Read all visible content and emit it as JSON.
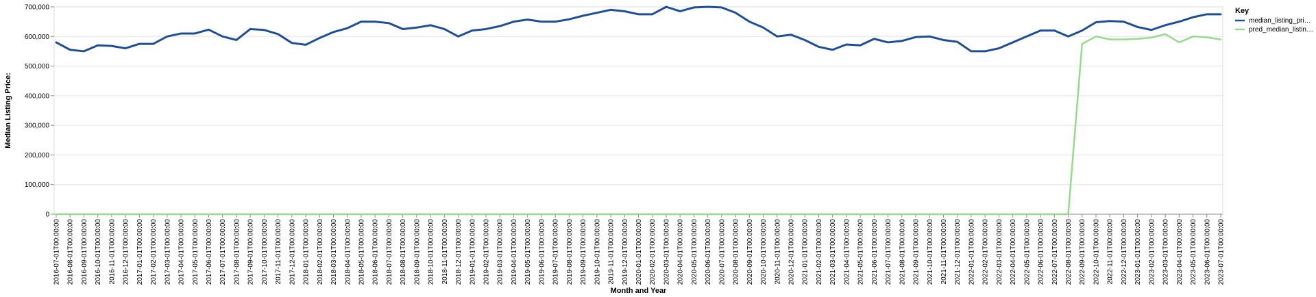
{
  "chart_data": {
    "type": "line",
    "xlabel": "Month and Year",
    "ylabel": "Median Listing Price:",
    "ylim": [
      0,
      700000
    ],
    "y_ticks": [
      "0",
      "100,000",
      "200,000",
      "300,000",
      "400,000",
      "500,000",
      "600,000",
      "700,000"
    ],
    "grid": true,
    "legend": {
      "title": "Key",
      "position": "right",
      "labels": [
        "median_listing_pri…",
        "pred_median_listin…"
      ]
    },
    "categories": [
      "2016-07-01T00:00:00",
      "2016-08-01T00:00:00",
      "2016-09-01T00:00:00",
      "2016-10-01T00:00:00",
      "2016-11-01T00:00:00",
      "2016-12-01T00:00:00",
      "2017-01-01T00:00:00",
      "2017-02-01T00:00:00",
      "2017-03-01T00:00:00",
      "2017-04-01T00:00:00",
      "2017-05-01T00:00:00",
      "2017-06-01T00:00:00",
      "2017-07-01T00:00:00",
      "2017-08-01T00:00:00",
      "2017-09-01T00:00:00",
      "2017-10-01T00:00:00",
      "2017-11-01T00:00:00",
      "2017-12-01T00:00:00",
      "2018-01-01T00:00:00",
      "2018-02-01T00:00:00",
      "2018-03-01T00:00:00",
      "2018-04-01T00:00:00",
      "2018-05-01T00:00:00",
      "2018-06-01T00:00:00",
      "2018-07-01T00:00:00",
      "2018-08-01T00:00:00",
      "2018-09-01T00:00:00",
      "2018-10-01T00:00:00",
      "2018-11-01T00:00:00",
      "2018-12-01T00:00:00",
      "2019-01-01T00:00:00",
      "2019-02-01T00:00:00",
      "2019-03-01T00:00:00",
      "2019-04-01T00:00:00",
      "2019-05-01T00:00:00",
      "2019-06-01T00:00:00",
      "2019-07-01T00:00:00",
      "2019-08-01T00:00:00",
      "2019-09-01T00:00:00",
      "2019-10-01T00:00:00",
      "2019-11-01T00:00:00",
      "2019-12-01T00:00:00",
      "2020-01-01T00:00:00",
      "2020-02-01T00:00:00",
      "2020-03-01T00:00:00",
      "2020-04-01T00:00:00",
      "2020-05-01T00:00:00",
      "2020-06-01T00:00:00",
      "2020-07-01T00:00:00",
      "2020-08-01T00:00:00",
      "2020-09-01T00:00:00",
      "2020-10-01T00:00:00",
      "2020-11-01T00:00:00",
      "2020-12-01T00:00:00",
      "2021-01-01T00:00:00",
      "2021-02-01T00:00:00",
      "2021-03-01T00:00:00",
      "2021-04-01T00:00:00",
      "2021-05-01T00:00:00",
      "2021-06-01T00:00:00",
      "2021-07-01T00:00:00",
      "2021-08-01T00:00:00",
      "2021-09-01T00:00:00",
      "2021-10-01T00:00:00",
      "2021-11-01T00:00:00",
      "2021-12-01T00:00:00",
      "2022-01-01T00:00:00",
      "2022-02-01T00:00:00",
      "2022-03-01T00:00:00",
      "2022-04-01T00:00:00",
      "2022-05-01T00:00:00",
      "2022-06-01T00:00:00",
      "2022-07-01T00:00:00",
      "2022-08-01T00:00:00",
      "2022-09-01T00:00:00",
      "2022-10-01T00:00:00",
      "2022-11-01T00:00:00",
      "2022-12-01T00:00:00",
      "2023-01-01T00:00:00",
      "2023-02-01T00:00:00",
      "2023-03-01T00:00:00",
      "2023-04-01T00:00:00",
      "2023-05-01T00:00:00",
      "2023-06-01T00:00:00",
      "2023-07-01T00:00:00"
    ],
    "series": [
      {
        "name": "median_listing_pri…",
        "color": "#1f4e99",
        "values": [
          580000,
          555000,
          550000,
          570000,
          568000,
          560000,
          575000,
          575000,
          600000,
          610000,
          610000,
          623000,
          600000,
          588000,
          625000,
          622000,
          608000,
          578000,
          572000,
          595000,
          615000,
          628000,
          650000,
          650000,
          645000,
          625000,
          630000,
          638000,
          625000,
          600000,
          620000,
          625000,
          635000,
          650000,
          657000,
          650000,
          650000,
          658000,
          670000,
          680000,
          690000,
          685000,
          675000,
          675000,
          700000,
          685000,
          698000,
          700000,
          698000,
          680000,
          650000,
          630000,
          600000,
          606000,
          588000,
          565000,
          555000,
          573000,
          570000,
          592000,
          580000,
          585000,
          598000,
          600000,
          588000,
          582000,
          550000,
          550000,
          560000,
          580000,
          600000,
          620000,
          620000,
          600000,
          620000,
          648000,
          652000,
          650000,
          632000,
          622000,
          638000,
          650000,
          665000,
          675000,
          675000
        ]
      },
      {
        "name": "pred_median_listin…",
        "color": "#98d98e",
        "values": [
          0,
          0,
          0,
          0,
          0,
          0,
          0,
          0,
          0,
          0,
          0,
          0,
          0,
          0,
          0,
          0,
          0,
          0,
          0,
          0,
          0,
          0,
          0,
          0,
          0,
          0,
          0,
          0,
          0,
          0,
          0,
          0,
          0,
          0,
          0,
          0,
          0,
          0,
          0,
          0,
          0,
          0,
          0,
          0,
          0,
          0,
          0,
          0,
          0,
          0,
          0,
          0,
          0,
          0,
          0,
          0,
          0,
          0,
          0,
          0,
          0,
          0,
          0,
          0,
          0,
          0,
          0,
          0,
          0,
          0,
          0,
          0,
          0,
          0,
          575000,
          600000,
          590000,
          590000,
          592000,
          596000,
          608000,
          580000,
          600000,
          597000,
          590000
        ]
      }
    ]
  }
}
